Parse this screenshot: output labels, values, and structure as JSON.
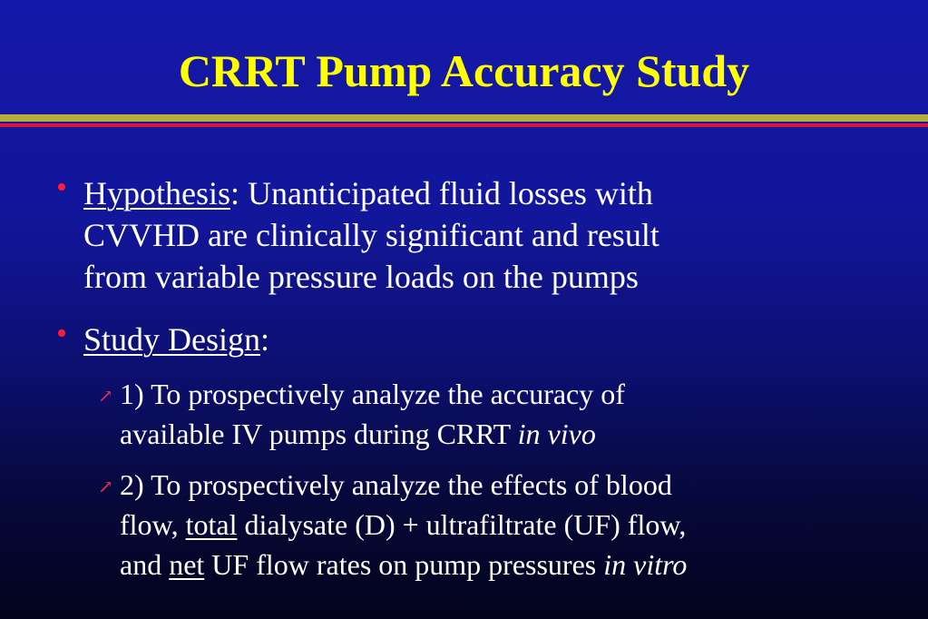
{
  "title": "CRRT Pump Accuracy Study",
  "bullet1": {
    "label": "Hypothesis",
    "line1_rest": ": Unanticipated fluid losses with",
    "line2": "CVVHD are clinically significant and result",
    "line3": "from variable pressure loads on the pumps"
  },
  "bullet2": {
    "label": "Study Design",
    "colon": ":"
  },
  "sub1": {
    "line1": "1) To prospectively analyze the accuracy of",
    "line2_plain": "available IV pumps during CRRT ",
    "line2_italic": "in vivo"
  },
  "sub2": {
    "line1": "2) To prospectively analyze the effects of blood",
    "line2_a": "flow, ",
    "line2_u": "total",
    "line2_b": " dialysate (D) + ultrafiltrate (UF) flow,",
    "line3_a": "and ",
    "line3_u": "net",
    "line3_b": " UF flow rates on pump pressures ",
    "line3_italic": "in vitro"
  },
  "icons": {
    "bullet": "bullet-dot-icon",
    "sub_bullet": "arrow-up-right-icon"
  },
  "colors": {
    "title": "#ffff00",
    "bullet": "#ff1a3a",
    "rule_olive": "#b5ae3a",
    "rule_red": "#e0103a"
  }
}
